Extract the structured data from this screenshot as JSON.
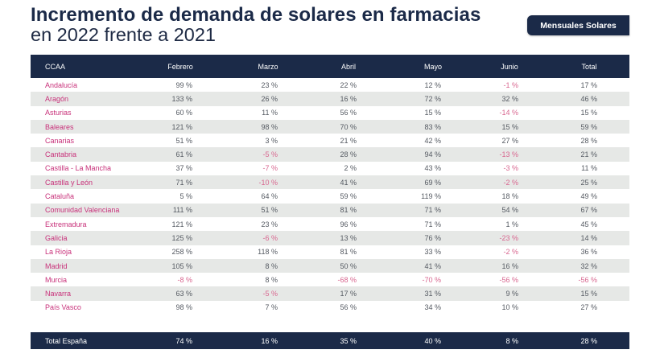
{
  "title": {
    "line1": "Incremento de demanda de solares en farmacias",
    "line2": "en 2022 frente a 2021"
  },
  "tag": {
    "label": "Mensuales Solares"
  },
  "colors": {
    "navy": "#1b2a48",
    "region_name": "#c8317a",
    "negative": "#d8668f",
    "stripe": "#e6e8e6"
  },
  "table": {
    "headers": [
      "CCAA",
      "Febrero",
      "Marzo",
      "Abril",
      "Mayo",
      "Junio",
      "Total"
    ],
    "rows": [
      {
        "ccaa": "Andalucía",
        "values": [
          "99 %",
          "23 %",
          "22 %",
          "12 %",
          "-1 %",
          "17 %"
        ]
      },
      {
        "ccaa": "Aragón",
        "values": [
          "133 %",
          "26 %",
          "16 %",
          "72 %",
          "32 %",
          "46 %"
        ]
      },
      {
        "ccaa": "Asturias",
        "values": [
          "60 %",
          "11 %",
          "56 %",
          "15 %",
          "-14 %",
          "15 %"
        ]
      },
      {
        "ccaa": "Baleares",
        "values": [
          "121 %",
          "98 %",
          "70 %",
          "83 %",
          "15 %",
          "59 %"
        ]
      },
      {
        "ccaa": "Canarias",
        "values": [
          "51 %",
          "3 %",
          "21 %",
          "42 %",
          "27 %",
          "28 %"
        ]
      },
      {
        "ccaa": "Cantabria",
        "values": [
          "61 %",
          "-5 %",
          "28 %",
          "94 %",
          "-13 %",
          "21 %"
        ]
      },
      {
        "ccaa": "Castilla - La Mancha",
        "values": [
          "37 %",
          "-7 %",
          "2 %",
          "43 %",
          "-3 %",
          "11 %"
        ]
      },
      {
        "ccaa": "Castilla y León",
        "values": [
          "71 %",
          "-10 %",
          "41 %",
          "69 %",
          "-2 %",
          "25 %"
        ]
      },
      {
        "ccaa": "Cataluña",
        "values": [
          "5 %",
          "64 %",
          "59 %",
          "119 %",
          "18 %",
          "49 %"
        ]
      },
      {
        "ccaa": "Comunidad Valenciana",
        "values": [
          "111 %",
          "51 %",
          "81 %",
          "71 %",
          "54 %",
          "67 %"
        ]
      },
      {
        "ccaa": "Extremadura",
        "values": [
          "121 %",
          "23 %",
          "96 %",
          "71 %",
          "1 %",
          "45 %"
        ]
      },
      {
        "ccaa": "Galicia",
        "values": [
          "125 %",
          "-6 %",
          "13 %",
          "76 %",
          "-23 %",
          "14 %"
        ]
      },
      {
        "ccaa": "La Rioja",
        "values": [
          "258 %",
          "118 %",
          "81 %",
          "33 %",
          "-2 %",
          "36 %"
        ]
      },
      {
        "ccaa": "Madrid",
        "values": [
          "105 %",
          "8 %",
          "50 %",
          "41 %",
          "16 %",
          "32 %"
        ]
      },
      {
        "ccaa": "Murcia",
        "values": [
          "-8 %",
          "8 %",
          "-68 %",
          "-70 %",
          "-56 %",
          "-56 %"
        ]
      },
      {
        "ccaa": "Navarra",
        "values": [
          "63 %",
          "-5 %",
          "17 %",
          "31 %",
          "9 %",
          "15 %"
        ]
      },
      {
        "ccaa": "País Vasco",
        "values": [
          "98 %",
          "7 %",
          "56 %",
          "34 %",
          "10 %",
          "27 %"
        ]
      }
    ],
    "total": {
      "ccaa": "Total España",
      "values": [
        "74 %",
        "16 %",
        "35 %",
        "40 %",
        "8 %",
        "28 %"
      ]
    }
  }
}
